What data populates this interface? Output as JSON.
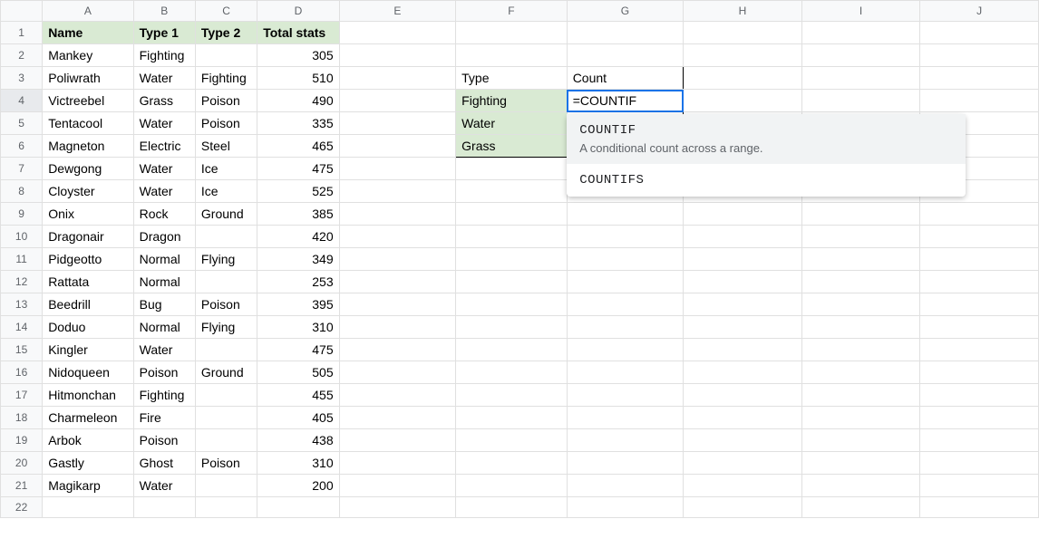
{
  "columns": [
    "A",
    "B",
    "C",
    "D",
    "E",
    "F",
    "G",
    "H",
    "I",
    "J"
  ],
  "headers": {
    "A": "Name",
    "B": "Type 1",
    "C": "Type 2",
    "D": "Total stats"
  },
  "header_fill": "#d9ead3",
  "data_rows": [
    {
      "name": "Mankey",
      "t1": "Fighting",
      "t2": "",
      "total": 305
    },
    {
      "name": "Poliwrath",
      "t1": "Water",
      "t2": "Fighting",
      "total": 510
    },
    {
      "name": "Victreebel",
      "t1": "Grass",
      "t2": "Poison",
      "total": 490
    },
    {
      "name": "Tentacool",
      "t1": "Water",
      "t2": "Poison",
      "total": 335
    },
    {
      "name": "Magneton",
      "t1": "Electric",
      "t2": "Steel",
      "total": 465
    },
    {
      "name": "Dewgong",
      "t1": "Water",
      "t2": "Ice",
      "total": 475
    },
    {
      "name": "Cloyster",
      "t1": "Water",
      "t2": "Ice",
      "total": 525
    },
    {
      "name": "Onix",
      "t1": "Rock",
      "t2": "Ground",
      "total": 385
    },
    {
      "name": "Dragonair",
      "t1": "Dragon",
      "t2": "",
      "total": 420
    },
    {
      "name": "Pidgeotto",
      "t1": "Normal",
      "t2": "Flying",
      "total": 349
    },
    {
      "name": "Rattata",
      "t1": "Normal",
      "t2": "",
      "total": 253
    },
    {
      "name": "Beedrill",
      "t1": "Bug",
      "t2": "Poison",
      "total": 395
    },
    {
      "name": "Doduo",
      "t1": "Normal",
      "t2": "Flying",
      "total": 310
    },
    {
      "name": "Kingler",
      "t1": "Water",
      "t2": "",
      "total": 475
    },
    {
      "name": "Nidoqueen",
      "t1": "Poison",
      "t2": "Ground",
      "total": 505
    },
    {
      "name": "Hitmonchan",
      "t1": "Fighting",
      "t2": "",
      "total": 455
    },
    {
      "name": "Charmeleon",
      "t1": "Fire",
      "t2": "",
      "total": 405
    },
    {
      "name": "Arbok",
      "t1": "Poison",
      "t2": "",
      "total": 438
    },
    {
      "name": "Gastly",
      "t1": "Ghost",
      "t2": "Poison",
      "total": 310
    },
    {
      "name": "Magikarp",
      "t1": "Water",
      "t2": "",
      "total": 200
    }
  ],
  "side_table": {
    "header": {
      "type": "Type",
      "count": "Count"
    },
    "rows": [
      {
        "type": "Fighting"
      },
      {
        "type": "Water"
      },
      {
        "type": "Grass"
      }
    ],
    "fill": "#d9ead3"
  },
  "formula_cell": {
    "address": "G4",
    "text": "=COUNTIF"
  },
  "autocomplete": {
    "items": [
      {
        "name": "COUNTIF",
        "desc": "A conditional count across a range.",
        "selected": true
      },
      {
        "name": "COUNTIFS",
        "desc": "",
        "selected": false
      }
    ]
  },
  "row_count": 22,
  "active_col_header": "G",
  "active_row_header": 4,
  "colors": {
    "grid": "#e0e0e0",
    "header_bg": "#f8f9fa",
    "header_text": "#5f6368",
    "selection": "#1a73e8",
    "green": "#d9ead3"
  }
}
